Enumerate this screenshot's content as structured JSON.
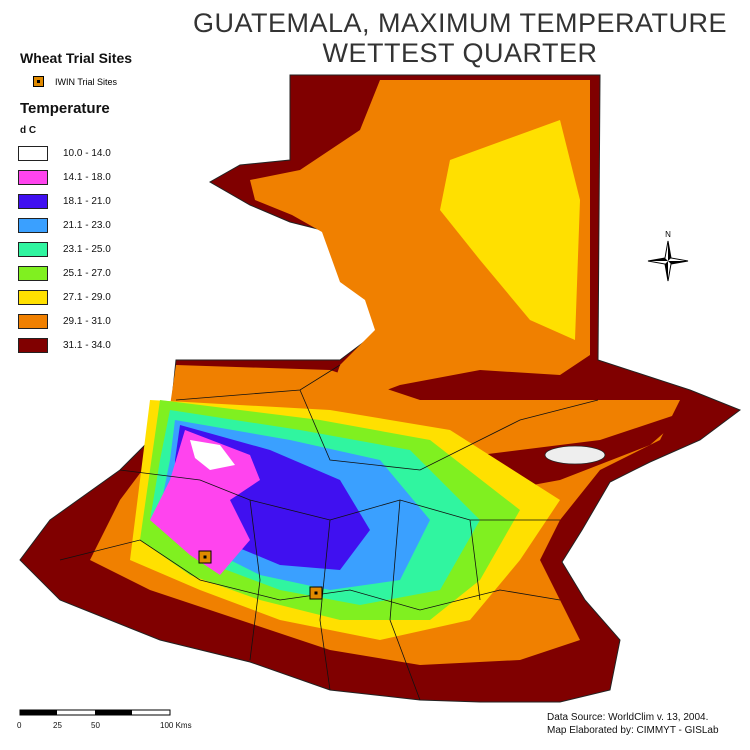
{
  "title": [
    "GUATEMALA, MAXIMUM TEMPERATURE",
    "WETTEST QUARTER"
  ],
  "legend": {
    "sites_title": "Wheat Trial Sites",
    "site_label": "IWIN Trial Sites",
    "temp_title": "Temperature",
    "unit": "d C",
    "classes": [
      {
        "label": "10.0 - 14.0",
        "color": "#ffffff"
      },
      {
        "label": "14.1 - 18.0",
        "color": "#ff44ee"
      },
      {
        "label": "18.1 - 21.0",
        "color": "#4010f0"
      },
      {
        "label": "21.1 - 23.0",
        "color": "#3aa0ff"
      },
      {
        "label": "23.1 - 25.0",
        "color": "#30f5a0"
      },
      {
        "label": "25.1 - 27.0",
        "color": "#80f020"
      },
      {
        "label": "27.1 - 29.0",
        "color": "#ffe000"
      },
      {
        "label": "29.1 - 31.0",
        "color": "#f08000"
      },
      {
        "label": "31.1 - 34.0",
        "color": "#800000"
      }
    ]
  },
  "compass": "N",
  "scale": {
    "labels": [
      "0",
      "25",
      "50",
      "100 Kms"
    ]
  },
  "source": [
    "Data Source: WorldClim v. 13,  2004.",
    "Map Elaborated by: CIMMYT - GISLab"
  ]
}
